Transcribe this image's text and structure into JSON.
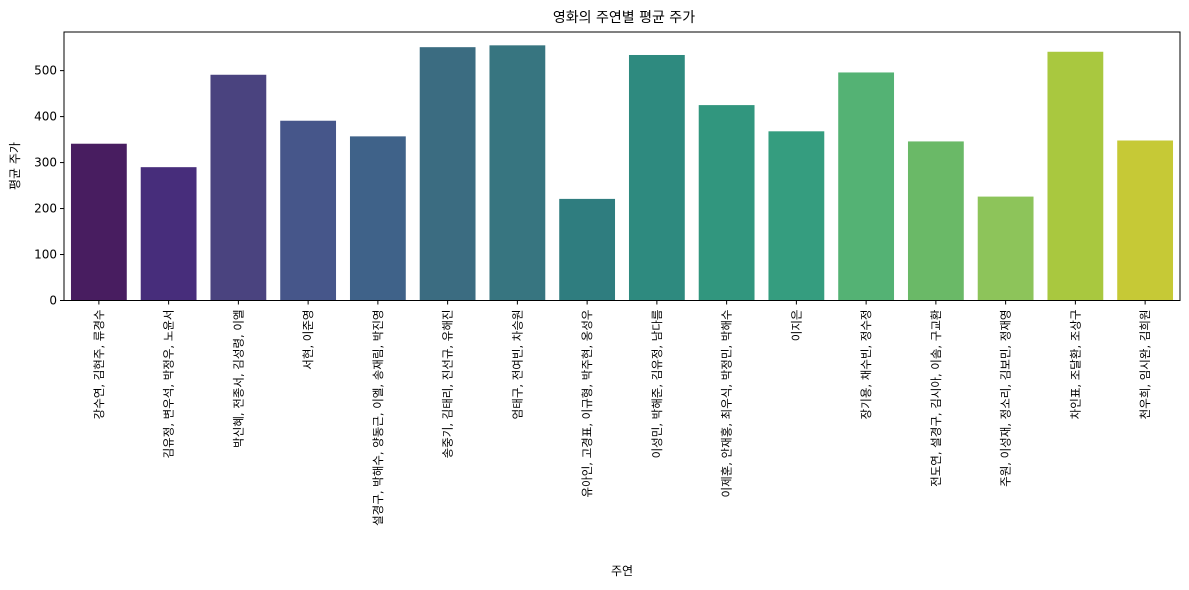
{
  "chart_data": {
    "type": "bar",
    "title": "영화의 주연별 평균 주가",
    "xlabel": "주연",
    "ylabel": "평균 주가",
    "ylim": [
      0,
      584
    ],
    "yticks": [
      0,
      100,
      200,
      300,
      400,
      500
    ],
    "grid": false,
    "categories": [
      "강수연, 김현주, 류경수",
      "김유정, 변우석, 박정우, 노윤서",
      "박신혜, 전종서, 김성령, 이엘",
      "서현, 이준영",
      "설경구, 박해수, 양동근, 이엘, 송재림, 박진영",
      "송중기, 김태리, 진선규, 유해진",
      "엄태구, 전여빈, 차승원",
      "유아인, 고경표, 이규형, 박주현, 옹성우",
      "이성민, 박해준, 김유정, 남다름",
      "이제훈, 안재홍, 최우식, 박정민, 박해수",
      "이지은",
      "장기용, 채수빈, 정수정",
      "전도연, 설경구, 김시아, 이솜, 구교환",
      "주원, 이성재, 정소리, 김보민, 정재영",
      "차인표, 조달환, 조상구",
      "천우희, 임시완, 김희원"
    ],
    "values": [
      341,
      290,
      491,
      391,
      357,
      551,
      555,
      221,
      534,
      425,
      368,
      496,
      346,
      226,
      541,
      348
    ],
    "colors": [
      "#481d60",
      "#472d7b",
      "#4a437f",
      "#46568a",
      "#3f6289",
      "#3b6c81",
      "#377580",
      "#2f7d7f",
      "#2e8a7f",
      "#31967e",
      "#359d7f",
      "#54b274",
      "#6ab967",
      "#8dc45a",
      "#a9c83f",
      "#c6c936"
    ]
  }
}
